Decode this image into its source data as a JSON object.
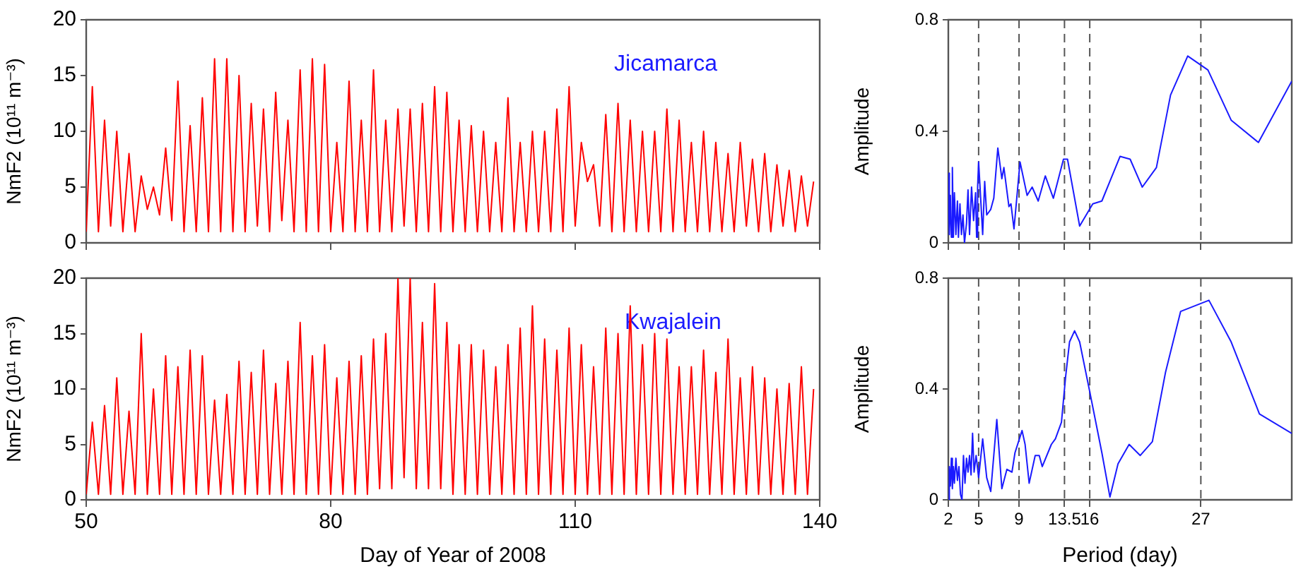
{
  "chart_data": [
    {
      "type": "line",
      "ylabel": "NmF2 (10¹¹ m⁻³)",
      "annotations": [
        "Jicamarca"
      ],
      "color": "#ff0000",
      "xlim": [
        50,
        140
      ],
      "xticks": [
        50,
        80,
        110,
        140
      ],
      "ylim": [
        0,
        20
      ],
      "yticks": [
        0,
        5,
        10,
        15,
        20
      ],
      "tick_labels": "y",
      "x": [
        50,
        50.75,
        51.5,
        52.25,
        53,
        53.75,
        54.5,
        55.25,
        56,
        56.75,
        57.5,
        58.25,
        59,
        59.75,
        60.5,
        61.25,
        62,
        62.75,
        63.5,
        64.25,
        65,
        65.75,
        66.5,
        67.25,
        68,
        68.75,
        69.5,
        70.25,
        71,
        71.75,
        72.5,
        73.25,
        74,
        74.75,
        75.5,
        76.25,
        77,
        77.75,
        78.5,
        79.25,
        80,
        80.75,
        81.5,
        82.25,
        83,
        83.75,
        84.5,
        85.25,
        86,
        86.75,
        87.5,
        88.25,
        89,
        89.75,
        90.5,
        91.25,
        92,
        92.75,
        93.5,
        94.25,
        95,
        95.75,
        96.5,
        97.25,
        98,
        98.75,
        99.5,
        100.25,
        101,
        101.75,
        102.5,
        103.25,
        104,
        104.75,
        105.5,
        106.25,
        107,
        107.75,
        108.5,
        109.25,
        110,
        110.75,
        111.5,
        112.25,
        113,
        113.75,
        114.5,
        115.25,
        116,
        116.75,
        117.5,
        118.25,
        119,
        119.75,
        120.5,
        121.25,
        122,
        122.75,
        123.5,
        124.25,
        125,
        125.75,
        126.5,
        127.25,
        128,
        128.75,
        129.5,
        130.25,
        131,
        131.75,
        132.5,
        133.25,
        134,
        134.75,
        135.5,
        136.25,
        137,
        137.75,
        138.5,
        139.25
      ],
      "values": [
        1,
        14,
        1,
        11,
        1.5,
        10,
        1,
        8,
        1,
        6,
        3,
        5,
        2.5,
        8.5,
        2,
        14.5,
        1,
        10.5,
        1,
        13,
        1,
        16.5,
        1,
        16.5,
        1,
        15,
        1,
        12.5,
        1.5,
        12,
        1,
        13.5,
        2,
        11,
        1,
        15.5,
        1,
        16.5,
        1,
        16,
        1,
        9,
        1,
        14.5,
        1,
        11,
        1,
        15.5,
        1,
        11,
        1,
        12,
        1.5,
        12,
        1,
        12.5,
        1,
        14,
        1,
        13.5,
        1,
        11,
        1,
        10.5,
        1,
        10,
        1,
        9,
        1,
        13,
        1,
        9,
        1,
        10,
        1,
        10,
        1,
        12,
        1,
        14,
        1.5,
        9,
        5.5,
        7,
        1.5,
        11.5,
        1,
        12.5,
        1,
        11,
        1,
        10,
        1,
        10,
        1,
        12,
        1,
        11,
        1,
        9,
        1,
        10,
        1,
        9,
        1,
        8,
        1,
        9,
        1.5,
        7.5,
        1,
        8,
        1,
        7,
        1.5,
        6.5,
        1,
        6,
        1.5,
        5.5
      ]
    },
    {
      "type": "line",
      "ylabel": "Amplitude",
      "color": "#1a1aff",
      "xlim": [
        2,
        36
      ],
      "xticks": [
        2,
        5,
        9,
        13.5,
        16,
        27
      ],
      "ylim": [
        0,
        0.8
      ],
      "yticks": [
        0,
        0.4,
        0.8
      ],
      "tick_labels": "y",
      "ref_lines": [
        {
          "axis": "x",
          "value": 5,
          "color": "#555555",
          "line_style": "dashed"
        },
        {
          "axis": "x",
          "value": 9,
          "color": "#555555",
          "line_style": "dashed"
        },
        {
          "axis": "x",
          "value": 13.5,
          "color": "#555555",
          "line_style": "dashed"
        },
        {
          "axis": "x",
          "value": 16,
          "color": "#555555",
          "line_style": "dashed"
        },
        {
          "axis": "x",
          "value": 27,
          "color": "#555555",
          "line_style": "dashed"
        }
      ],
      "x": [
        2,
        2.1,
        2.2,
        2.3,
        2.4,
        2.5,
        2.6,
        2.75,
        2.9,
        3,
        3.15,
        3.3,
        3.45,
        3.6,
        3.8,
        3.95,
        4.1,
        4.3,
        4.5,
        4.7,
        4.8,
        4.9,
        5,
        5.4,
        5.6,
        5.8,
        6.2,
        6.5,
        6.9,
        7.3,
        7.5,
        8,
        8.2,
        8.5,
        9.1,
        9.8,
        10.3,
        10.9,
        11.6,
        12.4,
        13.4,
        13.8,
        15,
        16.3,
        17.2,
        19,
        20,
        21.2,
        22.6,
        24,
        25.7,
        27.7,
        30,
        32.7,
        36
      ],
      "values": [
        0.25,
        0.03,
        0.17,
        0.02,
        0.27,
        0.02,
        0.18,
        0.03,
        0.15,
        0.02,
        0.14,
        0.03,
        0.1,
        0,
        0.07,
        0.19,
        0.03,
        0.2,
        0.08,
        0.18,
        0.02,
        0.2,
        0.29,
        0.03,
        0.22,
        0.1,
        0.12,
        0.16,
        0.34,
        0.23,
        0.27,
        0.13,
        0.14,
        0.05,
        0.29,
        0.17,
        0.2,
        0.15,
        0.24,
        0.16,
        0.3,
        0.3,
        0.06,
        0.14,
        0.15,
        0.31,
        0.3,
        0.2,
        0.27,
        0.53,
        0.67,
        0.62,
        0.44,
        0.36,
        0.58
      ]
    },
    {
      "type": "line",
      "ylabel": "NmF2 (10¹¹ m⁻³)",
      "xlabel": "Day of Year of 2008",
      "annotations": [
        "Kwajalein"
      ],
      "color": "#ff0000",
      "xlim": [
        50,
        140
      ],
      "xticks": [
        50,
        80,
        110,
        140
      ],
      "ylim": [
        0,
        20
      ],
      "yticks": [
        0,
        5,
        10,
        15,
        20
      ],
      "x": [
        50,
        50.75,
        51.5,
        52.25,
        53,
        53.75,
        54.5,
        55.25,
        56,
        56.75,
        57.5,
        58.25,
        59,
        59.75,
        60.5,
        61.25,
        62,
        62.75,
        63.5,
        64.25,
        65,
        65.75,
        66.5,
        67.25,
        68,
        68.75,
        69.5,
        70.25,
        71,
        71.75,
        72.5,
        73.25,
        74,
        74.75,
        75.5,
        76.25,
        77,
        77.75,
        78.5,
        79.25,
        80,
        80.75,
        81.5,
        82.25,
        83,
        83.75,
        84.5,
        85.25,
        86,
        86.75,
        87.5,
        88.25,
        89,
        89.75,
        90.5,
        91.25,
        92,
        92.75,
        93.5,
        94.25,
        95,
        95.75,
        96.5,
        97.25,
        98,
        98.75,
        99.5,
        100.25,
        101,
        101.75,
        102.5,
        103.25,
        104,
        104.75,
        105.5,
        106.25,
        107,
        107.75,
        108.5,
        109.25,
        110,
        110.75,
        111.5,
        112.25,
        113,
        113.75,
        114.5,
        115.25,
        116,
        116.75,
        117.5,
        118.25,
        119,
        119.75,
        120.5,
        121.25,
        122,
        122.75,
        123.5,
        124.25,
        125,
        125.75,
        126.5,
        127.25,
        128,
        128.75,
        129.5,
        130.25,
        131,
        131.75,
        132.5,
        133.25,
        134,
        134.75,
        135.5,
        136.25,
        137,
        137.75,
        138.5,
        139.25
      ],
      "values": [
        0.5,
        7,
        0.5,
        8.5,
        0.5,
        11,
        0.5,
        8,
        0.5,
        15,
        0.5,
        10,
        0.5,
        13,
        0.5,
        12,
        0.5,
        13.5,
        0.5,
        13,
        0.5,
        9,
        0.5,
        9.5,
        0.5,
        12.5,
        0.5,
        11.5,
        0.5,
        13.5,
        0.5,
        10.5,
        0.5,
        12.5,
        0.5,
        16,
        0.5,
        13,
        0.5,
        14,
        0.5,
        11,
        0.5,
        12.5,
        0.5,
        13,
        0.5,
        14.5,
        1,
        15,
        1,
        20,
        2,
        20,
        1,
        16,
        1,
        19.5,
        1,
        16,
        0.5,
        14,
        0.5,
        14,
        0.5,
        13.5,
        0.5,
        12,
        0.5,
        14,
        0.5,
        15.5,
        0.5,
        17.5,
        0.5,
        14.5,
        0.5,
        13.5,
        0.5,
        15.5,
        0.5,
        14,
        0.5,
        12,
        0.5,
        15.5,
        0.5,
        15,
        0.5,
        17.5,
        0.5,
        14,
        0.5,
        15,
        0.5,
        14.5,
        0.5,
        12,
        0.5,
        12,
        0.5,
        13.5,
        0.5,
        11.5,
        0.5,
        14.5,
        0.5,
        11,
        0.5,
        12,
        0.5,
        11,
        0.5,
        10,
        0.5,
        10.5,
        0.5,
        12,
        0.5,
        10
      ]
    },
    {
      "type": "line",
      "ylabel": "Amplitude",
      "xlabel": "Period (day)",
      "color": "#1a1aff",
      "xlim": [
        2,
        36
      ],
      "xticks": [
        2,
        5,
        9,
        13.5,
        16,
        27
      ],
      "ylim": [
        0,
        0.8
      ],
      "yticks": [
        0,
        0.4,
        0.8
      ],
      "ref_lines": [
        {
          "axis": "x",
          "value": 5,
          "color": "#555555",
          "line_style": "dashed"
        },
        {
          "axis": "x",
          "value": 9,
          "color": "#555555",
          "line_style": "dashed"
        },
        {
          "axis": "x",
          "value": 13.5,
          "color": "#555555",
          "line_style": "dashed"
        },
        {
          "axis": "x",
          "value": 16,
          "color": "#555555",
          "line_style": "dashed"
        },
        {
          "axis": "x",
          "value": 27,
          "color": "#555555",
          "line_style": "dashed"
        }
      ],
      "x": [
        2,
        2.1,
        2.2,
        2.3,
        2.4,
        2.5,
        2.6,
        2.75,
        2.9,
        3.05,
        3.2,
        3.35,
        3.5,
        3.65,
        3.8,
        3.95,
        4.1,
        4.25,
        4.4,
        4.55,
        4.75,
        5,
        5.4,
        5.8,
        6.2,
        6.8,
        7.3,
        7.8,
        8.3,
        8.6,
        9.3,
        9.6,
        10,
        10.6,
        11,
        11.3,
        12.2,
        12.6,
        13.2,
        13.6,
        14,
        14.5,
        15,
        16,
        17.2,
        18,
        18.8,
        19.9,
        21,
        22.2,
        23.5,
        25,
        27.8,
        30,
        32.8,
        36
      ],
      "values": [
        0,
        0.12,
        0.05,
        0.15,
        0.04,
        0.12,
        0.06,
        0.15,
        0.07,
        0.12,
        0.02,
        0,
        0.16,
        0.06,
        0.15,
        0.1,
        0.16,
        0.09,
        0.24,
        0.1,
        0.16,
        0.08,
        0.22,
        0.08,
        0.03,
        0.29,
        0.04,
        0.11,
        0.1,
        0.17,
        0.25,
        0.2,
        0.06,
        0.16,
        0.16,
        0.12,
        0.2,
        0.22,
        0.28,
        0.44,
        0.57,
        0.61,
        0.57,
        0.39,
        0.17,
        0.01,
        0.13,
        0.2,
        0.16,
        0.21,
        0.46,
        0.68,
        0.72,
        0.57,
        0.31,
        0.24
      ]
    }
  ]
}
